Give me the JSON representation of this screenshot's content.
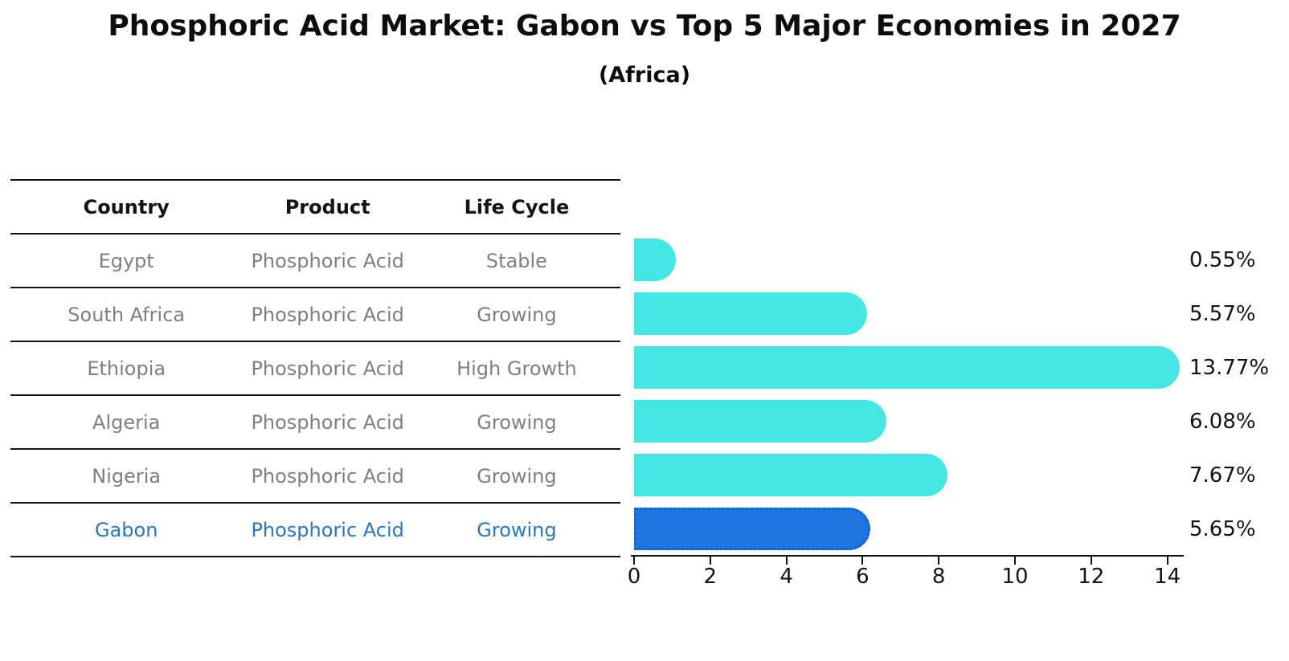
{
  "title": "Phosphoric Acid Market: Gabon vs Top 5 Major Economies in 2027",
  "subtitle": "(Africa)",
  "table": {
    "columns": [
      "Country",
      "Product",
      "Life Cycle"
    ],
    "rows": [
      {
        "country": "Egypt",
        "product": "Phosphoric Acid",
        "life_cycle": "Stable",
        "highlight": false
      },
      {
        "country": "South Africa",
        "product": "Phosphoric Acid",
        "life_cycle": "Growing",
        "highlight": false
      },
      {
        "country": "Ethiopia",
        "product": "Phosphoric Acid",
        "life_cycle": "High Growth",
        "highlight": false
      },
      {
        "country": "Algeria",
        "product": "Phosphoric Acid",
        "life_cycle": "Growing",
        "highlight": false
      },
      {
        "country": "Nigeria",
        "product": "Phosphoric Acid",
        "life_cycle": "Growing",
        "highlight": false
      },
      {
        "country": "Gabon",
        "product": "Phosphoric Acid",
        "life_cycle": "Growing",
        "highlight": true
      }
    ]
  },
  "chart_data": {
    "type": "bar",
    "orientation": "horizontal",
    "title": "Phosphoric Acid Market: Gabon vs Top 5 Major Economies in 2027",
    "subtitle": "(Africa)",
    "categories": [
      "Egypt",
      "South Africa",
      "Ethiopia",
      "Algeria",
      "Nigeria",
      "Gabon"
    ],
    "values": [
      0.55,
      5.57,
      13.77,
      6.08,
      7.67,
      5.65
    ],
    "value_labels": [
      "0.55%",
      "5.57%",
      "13.77%",
      "6.08%",
      "7.67%",
      "5.65%"
    ],
    "highlight_category": "Gabon",
    "xlabel": "",
    "ylabel": "",
    "xlim": [
      0,
      14.4
    ],
    "x_ticks": [
      0,
      2,
      4,
      6,
      8,
      10,
      12,
      14
    ],
    "grid": false,
    "legend": false
  },
  "colors": {
    "bar": "#44E7E3",
    "highlight_bar": "#1E74E1",
    "highlight_border": "#1062D4",
    "highlight_text": "#2878BE",
    "table_text": "#7F7F7F",
    "header_text": "#141414",
    "axis": "#141414"
  }
}
